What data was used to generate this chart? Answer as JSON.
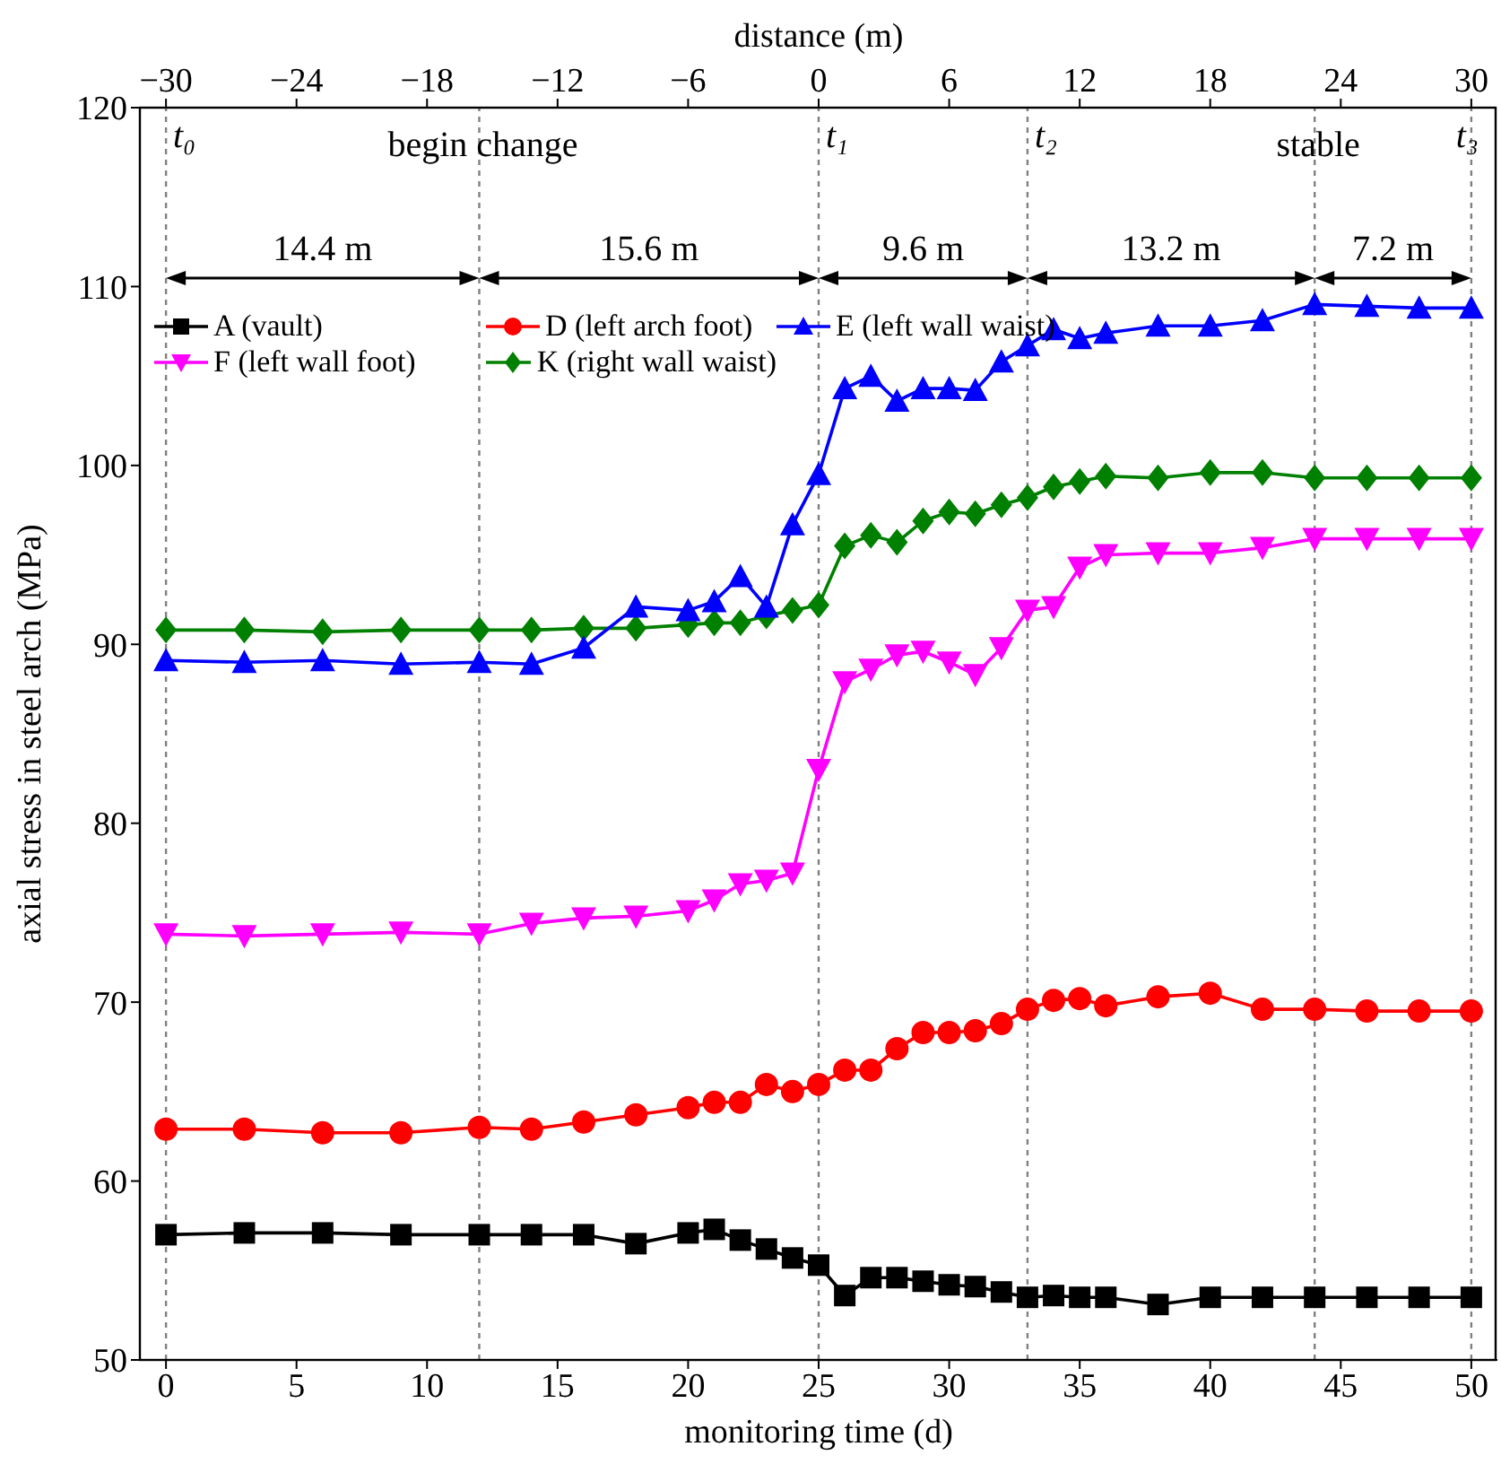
{
  "chart_data": {
    "type": "line",
    "xlabel": "monitoring time (d)",
    "ylabel": "axial stress in steel arch (MPa)",
    "x2label": "distance (m)",
    "x": [
      0,
      3,
      6,
      9,
      12,
      14,
      16,
      18,
      20,
      21,
      22,
      23,
      24,
      25,
      26,
      27,
      28,
      29,
      30,
      31,
      32,
      33,
      34,
      35,
      36,
      38,
      40,
      42,
      44,
      46,
      48,
      50
    ],
    "series": [
      {
        "name": "A (vault)",
        "color": "#000000",
        "marker": "square",
        "values": [
          57,
          57.1,
          57.1,
          57,
          57,
          57,
          57,
          56.5,
          57.1,
          57.3,
          56.7,
          56.2,
          55.7,
          55.3,
          53.6,
          54.6,
          54.6,
          54.4,
          54.2,
          54.1,
          53.8,
          53.5,
          53.6,
          53.5,
          53.5,
          53.1,
          53.5,
          53.5,
          53.5,
          53.5,
          53.5,
          53.5
        ]
      },
      {
        "name": "D (left arch foot)",
        "color": "#ff0000",
        "marker": "circle",
        "values": [
          62.9,
          62.9,
          62.7,
          62.7,
          63,
          62.9,
          63.3,
          63.7,
          64.1,
          64.4,
          64.4,
          65.4,
          65,
          65.4,
          66.2,
          66.2,
          67.4,
          68.3,
          68.3,
          68.4,
          68.8,
          69.6,
          70.1,
          70.2,
          69.8,
          70.3,
          70.5,
          69.6,
          69.6,
          69.5,
          69.5,
          69.5
        ]
      },
      {
        "name": "E (left wall waist)",
        "color": "#0000ff",
        "marker": "triangle",
        "values": [
          89.1,
          89,
          89.1,
          88.9,
          89,
          88.9,
          89.8,
          92.1,
          91.9,
          92.4,
          93.8,
          92.1,
          96.7,
          99.5,
          104.3,
          105,
          103.6,
          104.3,
          104.3,
          104.2,
          105.8,
          106.7,
          107.6,
          107.1,
          107.4,
          107.8,
          107.8,
          108.1,
          109,
          108.9,
          108.8,
          108.8
        ]
      },
      {
        "name": "F (left wall foot)",
        "color": "#ff00ff",
        "marker": "triangle-down",
        "values": [
          73.8,
          73.7,
          73.8,
          73.9,
          73.8,
          74.4,
          74.7,
          74.8,
          75.1,
          75.7,
          76.6,
          76.8,
          77.2,
          83,
          87.9,
          88.6,
          89.4,
          89.6,
          89,
          88.3,
          89.8,
          91.9,
          92.1,
          94.3,
          95,
          95.1,
          95.1,
          95.4,
          95.9,
          95.9,
          95.9,
          95.9
        ]
      },
      {
        "name": "K (right wall waist)",
        "color": "#008000",
        "marker": "diamond",
        "values": [
          90.8,
          90.8,
          90.7,
          90.8,
          90.8,
          90.8,
          90.9,
          90.9,
          91.1,
          91.2,
          91.2,
          91.6,
          91.9,
          92.2,
          95.5,
          96.1,
          95.7,
          96.9,
          97.4,
          97.3,
          97.8,
          98.2,
          98.8,
          99.1,
          99.4,
          99.3,
          99.6,
          99.6,
          99.3,
          99.3,
          99.3,
          99.3
        ]
      }
    ],
    "xlim": [
      -1,
      51
    ],
    "xticks": [
      0,
      5,
      10,
      15,
      20,
      25,
      30,
      35,
      40,
      45,
      50
    ],
    "x2lim": [
      -31.2,
      31.2
    ],
    "x2ticks": [
      {
        "value": -30,
        "label": "−30"
      },
      {
        "value": -24,
        "label": "−24"
      },
      {
        "value": -18,
        "label": "−18"
      },
      {
        "value": -12,
        "label": "−12"
      },
      {
        "value": -6,
        "label": "−6"
      },
      0,
      6,
      12,
      18,
      24,
      30
    ],
    "ylim": [
      50,
      120
    ],
    "yticks": [
      50,
      60,
      70,
      80,
      90,
      100,
      110,
      120
    ],
    "ref_lines": [
      {
        "axis": "x",
        "value": 0,
        "label": "t₀",
        "color": "#808080",
        "line_style": "dotted"
      },
      {
        "axis": "x",
        "value": 12,
        "label": "begin change",
        "color": "#808080",
        "line_style": "dotted"
      },
      {
        "axis": "x",
        "value": 25,
        "label": "t₁",
        "color": "#808080",
        "line_style": "dotted"
      },
      {
        "axis": "x",
        "value": 33,
        "label": "t₂",
        "color": "#808080",
        "line_style": "dotted"
      },
      {
        "axis": "x",
        "value": 44,
        "label": "stable",
        "color": "#808080",
        "line_style": "dotted"
      },
      {
        "axis": "x",
        "value": 50,
        "label": "t₃",
        "color": "#808080",
        "line_style": "dotted"
      }
    ],
    "annotations": [
      "14.4 m",
      "15.6 m",
      "9.6 m",
      "13.2 m",
      "7.2 m"
    ],
    "legend": "top left"
  }
}
